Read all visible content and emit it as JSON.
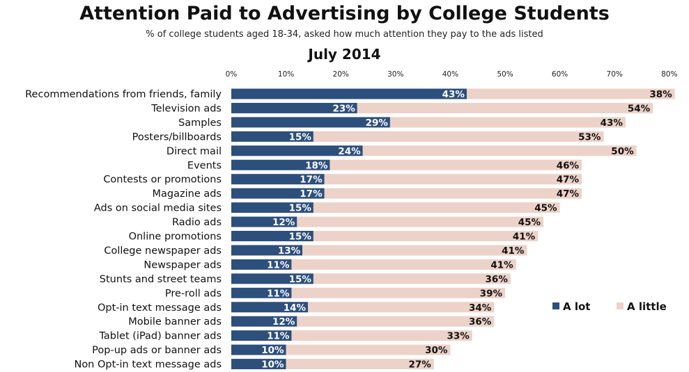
{
  "chart_data": {
    "type": "bar",
    "orientation": "horizontal",
    "stacked": true,
    "title": "Attention Paid to Advertising by College Students",
    "subtitle": "% of college students aged 18-34, asked how much attention they pay to the ads listed",
    "period": "July 2014",
    "xlim": [
      0,
      80
    ],
    "x_ticks": [
      "0%",
      "10%",
      "20%",
      "30%",
      "40%",
      "50%",
      "60%",
      "70%",
      "80%"
    ],
    "legend_position": "right",
    "colors": {
      "a_lot": "#2d4f7c",
      "a_little": "#ecd2c8",
      "a_lot_text": "#ffffff",
      "a_little_text": "#111111"
    },
    "categories": [
      "Recommendations from friends, family",
      "Television ads",
      "Samples",
      "Posters/billboards",
      "Direct mail",
      "Events",
      "Contests or promotions",
      "Magazine ads",
      "Ads on social media sites",
      "Radio ads",
      "Online promotions",
      "College newspaper ads",
      "Newspaper ads",
      "Stunts and street teams",
      "Pre-roll ads",
      "Opt-in text message ads",
      "Mobile banner ads",
      "Tablet (iPad) banner ads",
      "Pop-up ads or banner ads",
      "Non Opt-in text message ads"
    ],
    "series": [
      {
        "name": "A lot",
        "values": [
          43,
          23,
          29,
          15,
          24,
          18,
          17,
          17,
          15,
          12,
          15,
          13,
          11,
          15,
          11,
          14,
          12,
          11,
          10,
          10
        ]
      },
      {
        "name": "A little",
        "values": [
          38,
          54,
          43,
          53,
          50,
          46,
          47,
          47,
          45,
          45,
          41,
          41,
          41,
          36,
          39,
          34,
          36,
          33,
          30,
          27
        ]
      }
    ]
  }
}
